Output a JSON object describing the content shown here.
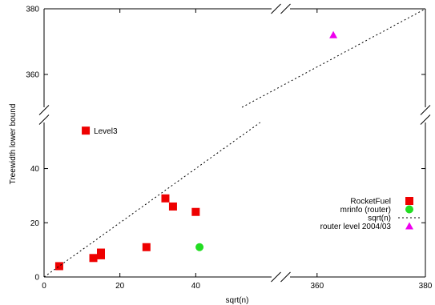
{
  "chart_data": {
    "type": "scatter",
    "title": "",
    "xlabel": "sqrt(n)",
    "ylabel": "Treewidth lower bound",
    "x_axis": {
      "segments": [
        {
          "range": [
            0,
            60
          ],
          "ticks": [
            0,
            20,
            40
          ],
          "tick_labels": [
            "0",
            "20",
            "40"
          ]
        },
        {
          "range": [
            355,
            380
          ],
          "ticks": [
            360,
            380
          ],
          "tick_labels": [
            "360",
            "380"
          ]
        }
      ]
    },
    "y_axis": {
      "segments": [
        {
          "range": [
            0,
            57
          ],
          "ticks": [
            0,
            20,
            40
          ],
          "tick_labels": [
            "0",
            "20",
            "40"
          ]
        },
        {
          "range": [
            350,
            380
          ],
          "ticks": [
            360,
            380
          ],
          "tick_labels": [
            "360",
            "380"
          ]
        }
      ]
    },
    "grid": false,
    "legend_position": "right",
    "series": [
      {
        "name": "RocketFuel",
        "marker": "square",
        "color": "#ee0000",
        "points": [
          {
            "x": 4,
            "y": 4
          },
          {
            "x": 13,
            "y": 7
          },
          {
            "x": 15,
            "y": 8
          },
          {
            "x": 15,
            "y": 9
          },
          {
            "x": 27,
            "y": 11
          },
          {
            "x": 32,
            "y": 29
          },
          {
            "x": 34,
            "y": 26
          },
          {
            "x": 40,
            "y": 24
          },
          {
            "x": 11,
            "y": 54
          }
        ]
      },
      {
        "name": "mrinfo (router)",
        "marker": "circle",
        "color": "#22dd22",
        "points": [
          {
            "x": 41,
            "y": 11
          }
        ]
      },
      {
        "name": "sqrt(n)",
        "marker": "dotted-line",
        "color": "#000000",
        "points": [
          {
            "x": 0,
            "y": 0
          },
          {
            "x": 380,
            "y": 380
          }
        ]
      },
      {
        "name": "router level 2004/03",
        "marker": "triangle",
        "color": "#ee00ee",
        "points": [
          {
            "x": 363,
            "y": 372
          }
        ]
      }
    ],
    "annotations": [
      {
        "text": "Level3",
        "x": 11,
        "y": 54
      }
    ]
  }
}
